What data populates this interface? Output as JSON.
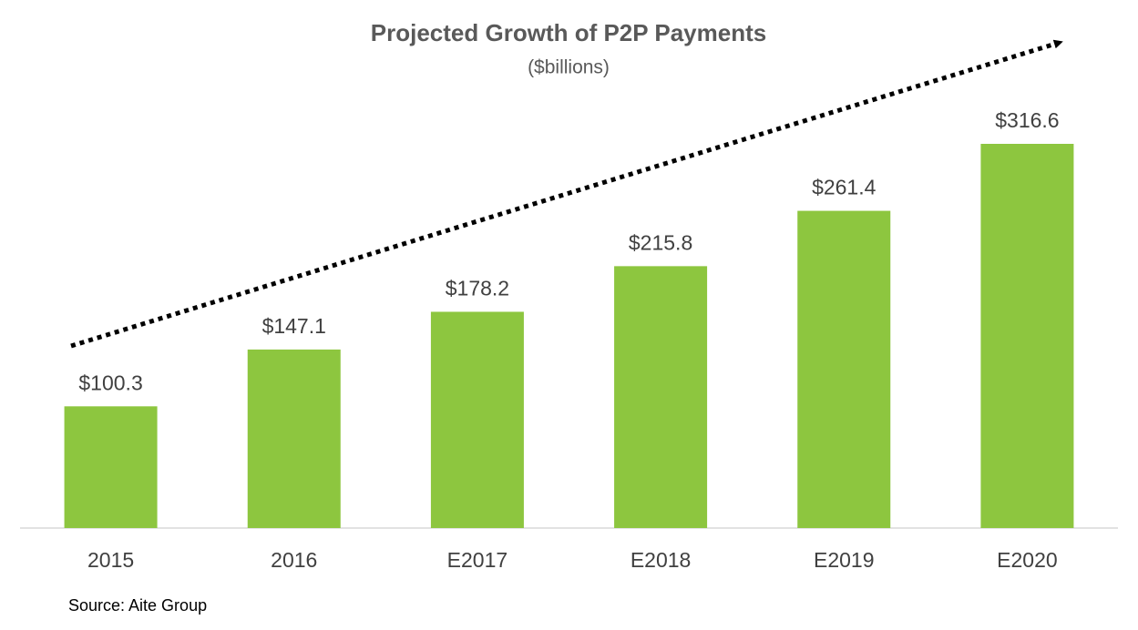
{
  "chart_data": {
    "type": "bar",
    "title": "Projected Growth of P2P Payments",
    "subtitle": "($billions)",
    "categories": [
      "2015",
      "2016",
      "E2017",
      "E2018",
      "E2019",
      "E2020"
    ],
    "values": [
      100.3,
      147.1,
      178.2,
      215.8,
      261.4,
      316.6
    ],
    "value_labels": [
      "$100.3",
      "$147.1",
      "$178.2",
      "$215.8",
      "$261.4",
      "$316.6"
    ],
    "color": "#8dc63f",
    "source": "Source: Aite Group"
  }
}
